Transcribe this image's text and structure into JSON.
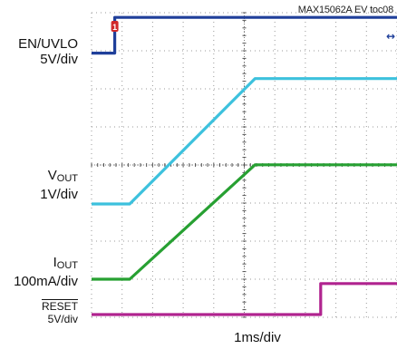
{
  "chart_data": {
    "type": "line",
    "title": "MAX15062A EV toc08",
    "xlabel": "1ms/div",
    "x_divisions": 10,
    "grid": true,
    "channels": [
      {
        "key": "en",
        "label_main": "EN/UVLO",
        "label_sub": "5V/div",
        "color": "#1f3f9a",
        "points": [
          [
            0,
            0.08
          ],
          [
            0.76,
            0.08
          ],
          [
            0.76,
            1.02
          ],
          [
            10,
            1.02
          ]
        ]
      },
      {
        "key": "vout",
        "label_main": "V",
        "label_main_sub": "OUT",
        "label_sub": "1V/div",
        "color": "#3cc1dd",
        "points": [
          [
            0,
            0.0
          ],
          [
            1.25,
            0.0
          ],
          [
            5.35,
            1.52
          ],
          [
            10,
            1.52
          ]
        ]
      },
      {
        "key": "iout",
        "label_main": "I",
        "label_main_sub": "OUT",
        "label_sub": "100mA/div",
        "color": "#27a032",
        "points": [
          [
            0,
            0.0
          ],
          [
            1.25,
            0.0
          ],
          [
            5.35,
            1.52
          ],
          [
            10,
            1.52
          ]
        ]
      },
      {
        "key": "reset",
        "label_main": "RESET",
        "label_sub": "5V/div",
        "color": "#b0238f",
        "points": [
          [
            0,
            0.0
          ],
          [
            7.5,
            0.0
          ],
          [
            7.5,
            0.9
          ],
          [
            10,
            0.9
          ]
        ]
      }
    ],
    "markers": [
      {
        "label": "1",
        "color": "#d0282a"
      },
      {
        "label": "↔",
        "color": "#1f3f9a"
      }
    ]
  }
}
